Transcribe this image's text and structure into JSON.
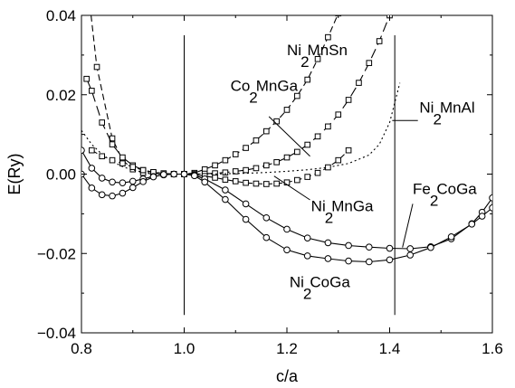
{
  "chart_data": {
    "type": "line",
    "title": "",
    "xlabel": "c/a",
    "ylabel": "E(Ry)",
    "xlim": [
      0.8,
      1.6
    ],
    "ylim": [
      -0.04,
      0.04
    ],
    "xticks": [
      0.8,
      1.0,
      1.2,
      1.4,
      1.6
    ],
    "xtick_labels": [
      "0.8",
      "1.0",
      "1.2",
      "1.4",
      "1.6"
    ],
    "yticks": [
      -0.04,
      -0.02,
      0.0,
      0.02,
      0.04
    ],
    "ytick_labels": [
      "−0.04",
      "−0.02",
      "0.00",
      "0.02",
      "0.04"
    ],
    "grid": false,
    "reference_lines_x": [
      1.0,
      1.41
    ],
    "series": [
      {
        "label_parts": [
          "Ni",
          "2",
          "MnSn"
        ],
        "style": "dashed",
        "marker": "square",
        "x": [
          0.81,
          0.83,
          0.86,
          0.88,
          0.9,
          0.92,
          0.94,
          0.96,
          0.98,
          1.0,
          1.02,
          1.04,
          1.06,
          1.08,
          1.1,
          1.12,
          1.14,
          1.16,
          1.18,
          1.2,
          1.22,
          1.24,
          1.26,
          1.28,
          1.3,
          1.33
        ],
        "y": [
          0.05,
          0.027,
          0.009,
          0.0035,
          0.0012,
          0.0003,
          0.0,
          0.0,
          0.0,
          0.0,
          0.0003,
          0.0012,
          0.0022,
          0.0035,
          0.005,
          0.0066,
          0.0085,
          0.0108,
          0.0133,
          0.0162,
          0.0197,
          0.0238,
          0.029,
          0.0345,
          0.0405,
          0.052
        ]
      },
      {
        "label_parts": [
          "Co",
          "2",
          "MnGa"
        ],
        "style": "long-dashed",
        "marker": "square",
        "x": [
          0.81,
          0.82,
          0.84,
          0.86,
          0.88,
          0.9,
          0.92,
          0.94,
          0.96,
          0.98,
          1.0,
          1.02,
          1.04,
          1.06,
          1.08,
          1.1,
          1.12,
          1.14,
          1.16,
          1.18,
          1.2,
          1.22,
          1.24,
          1.26,
          1.28,
          1.3,
          1.32,
          1.34,
          1.36,
          1.38,
          1.4
        ],
        "y": [
          0.024,
          0.021,
          0.013,
          0.0075,
          0.0042,
          0.0022,
          0.001,
          0.0004,
          0.0001,
          0.0,
          0.0,
          0.0,
          0.0001,
          0.0002,
          0.0004,
          0.0007,
          0.001,
          0.0015,
          0.0022,
          0.003,
          0.0042,
          0.0056,
          0.0074,
          0.0095,
          0.012,
          0.015,
          0.0187,
          0.023,
          0.028,
          0.0335,
          0.04
        ]
      },
      {
        "label_parts": [
          "Ni",
          "2",
          "MnAl"
        ],
        "style": "dotted",
        "marker": "none",
        "x": [
          0.8,
          0.82,
          0.84,
          0.86,
          0.88,
          0.9,
          0.92,
          0.94,
          0.96,
          0.98,
          1.0,
          1.04,
          1.08,
          1.12,
          1.16,
          1.2,
          1.24,
          1.28,
          1.32,
          1.36,
          1.38,
          1.4,
          1.42
        ],
        "y": [
          0.011,
          0.0075,
          0.005,
          0.0032,
          0.0019,
          0.001,
          0.0005,
          0.0002,
          0.0,
          0.0,
          0.0,
          0.0,
          0.0001,
          0.0002,
          0.0004,
          0.0007,
          0.0011,
          0.0017,
          0.0027,
          0.0048,
          0.0075,
          0.013,
          0.023
        ]
      },
      {
        "label_parts": [
          "Ni",
          "2",
          "MnGa"
        ],
        "style": "dashed",
        "marker": "square",
        "x": [
          0.82,
          0.84,
          0.86,
          0.88,
          0.9,
          0.92,
          0.94,
          0.96,
          0.98,
          1.0,
          1.02,
          1.04,
          1.06,
          1.08,
          1.1,
          1.12,
          1.14,
          1.16,
          1.18,
          1.2,
          1.22,
          1.24,
          1.26,
          1.28,
          1.3,
          1.32
        ],
        "y": [
          0.006,
          0.0045,
          0.0035,
          0.0027,
          0.0018,
          0.001,
          0.0005,
          0.0002,
          0.0,
          0.0,
          -0.0002,
          -0.0005,
          -0.0009,
          -0.0014,
          -0.0018,
          -0.0022,
          -0.0024,
          -0.0025,
          -0.0024,
          -0.0021,
          -0.0015,
          -0.0007,
          0.0003,
          0.0017,
          0.0035,
          0.006
        ]
      },
      {
        "label_parts": [
          "Fe",
          "2",
          "CoGa"
        ],
        "style": "solid",
        "marker": "circle",
        "x": [
          0.8,
          0.82,
          0.84,
          0.86,
          0.88,
          0.9,
          0.92,
          0.94,
          0.96,
          0.98,
          1.0,
          1.02,
          1.04,
          1.08,
          1.12,
          1.16,
          1.2,
          1.24,
          1.28,
          1.32,
          1.36,
          1.4,
          1.44,
          1.48,
          1.52,
          1.56,
          1.58,
          1.6
        ],
        "y": [
          0.006,
          0.0015,
          -0.001,
          -0.002,
          -0.0022,
          -0.0018,
          -0.0012,
          -0.0006,
          -0.0002,
          0.0,
          0.0,
          -0.0003,
          -0.0012,
          -0.004,
          -0.0075,
          -0.011,
          -0.0139,
          -0.0161,
          -0.0173,
          -0.018,
          -0.0184,
          -0.0187,
          -0.0188,
          -0.0183,
          -0.0163,
          -0.0125,
          -0.0096,
          -0.006
        ]
      },
      {
        "label_parts": [
          "Ni",
          "2",
          "CoGa"
        ],
        "style": "solid",
        "marker": "circle",
        "x": [
          0.8,
          0.82,
          0.84,
          0.86,
          0.88,
          0.9,
          0.92,
          0.94,
          0.96,
          0.98,
          1.0,
          1.02,
          1.04,
          1.08,
          1.12,
          1.16,
          1.2,
          1.24,
          1.28,
          1.32,
          1.36,
          1.4,
          1.44,
          1.48,
          1.52,
          1.56,
          1.58,
          1.6
        ],
        "y": [
          0.0,
          -0.0035,
          -0.0052,
          -0.0055,
          -0.0048,
          -0.0034,
          -0.0019,
          -0.0007,
          -0.0001,
          0.0,
          0.0,
          -0.0004,
          -0.002,
          -0.0064,
          -0.0114,
          -0.016,
          -0.0191,
          -0.0206,
          -0.0213,
          -0.0219,
          -0.0221,
          -0.0216,
          -0.0204,
          -0.0185,
          -0.0158,
          -0.0126,
          -0.0106,
          -0.0085
        ]
      }
    ]
  }
}
